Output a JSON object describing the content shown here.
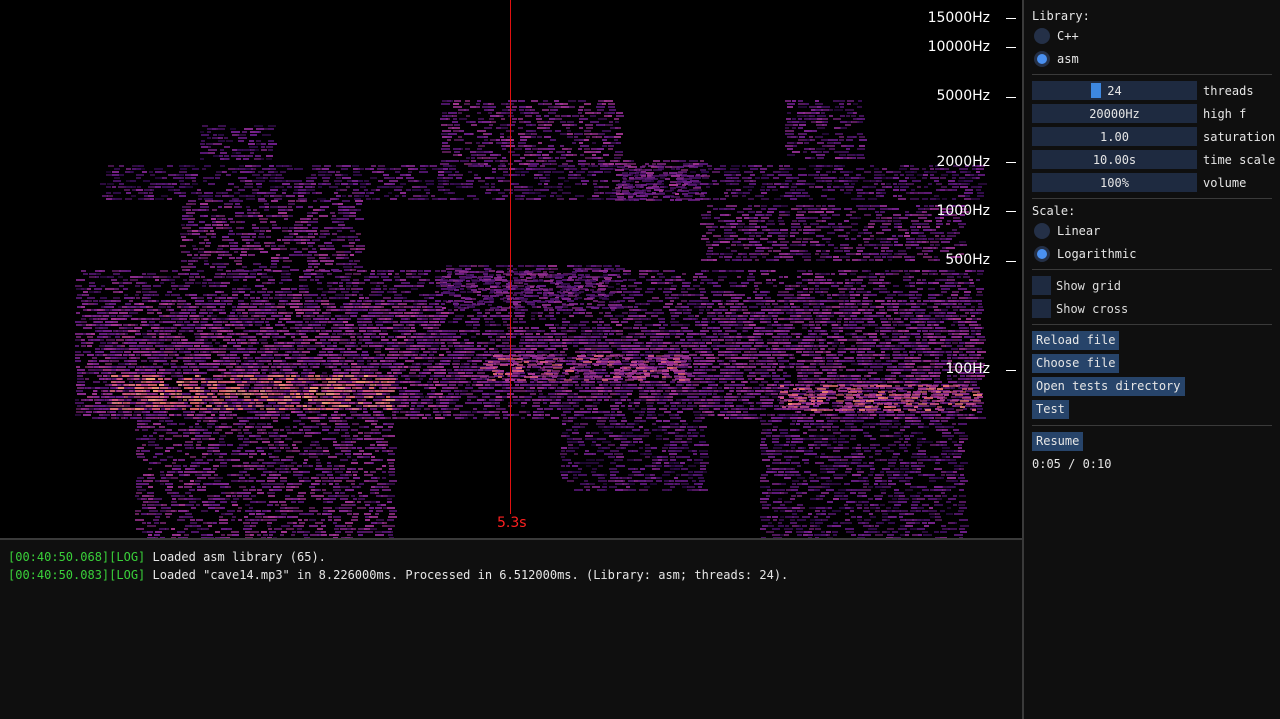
{
  "spectrogram": {
    "freq_labels": [
      "15000Hz",
      "10000Hz",
      "5000Hz",
      "2000Hz",
      "1000Hz",
      "500Hz",
      "100Hz"
    ],
    "cursor_label": "5.3s",
    "colors": {
      "cursor": "#e01010",
      "low": "#3a0e5a",
      "mid": "#b03a9a",
      "high": "#ffb070"
    }
  },
  "log": {
    "lines": [
      {
        "timestamp": "[00:40:50.068][LOG]",
        "message": " Loaded asm library (65)."
      },
      {
        "timestamp": "[00:40:50.083][LOG]",
        "message": " Loaded \"cave14.mp3\" in 8.226000ms. Processed in 6.512000ms. (Library: asm; threads: 24)."
      }
    ]
  },
  "controls": {
    "library": {
      "label": "Library:",
      "options": [
        {
          "label": "C++",
          "selected": false
        },
        {
          "label": "asm",
          "selected": true
        }
      ]
    },
    "sliders": [
      {
        "value": "24",
        "name": "threads",
        "level": 0.375
      },
      {
        "value": "20000Hz",
        "name": "high f"
      },
      {
        "value": "1.00",
        "name": "saturation"
      },
      {
        "value": "10.00s",
        "name": "time scale"
      },
      {
        "value": "100%",
        "name": "volume"
      }
    ],
    "scale": {
      "label": "Scale:",
      "options": [
        {
          "label": "Linear",
          "selected": false
        },
        {
          "label": "Logarithmic",
          "selected": true
        }
      ]
    },
    "checkboxes": [
      {
        "label": "Show grid",
        "checked": false
      },
      {
        "label": "Show cross",
        "checked": false
      }
    ],
    "buttons": {
      "reload": "Reload file",
      "choose": "Choose file",
      "open_tests": "Open tests directory",
      "test": "Test",
      "resume": "Resume"
    },
    "time": "0:05 / 0:10"
  }
}
